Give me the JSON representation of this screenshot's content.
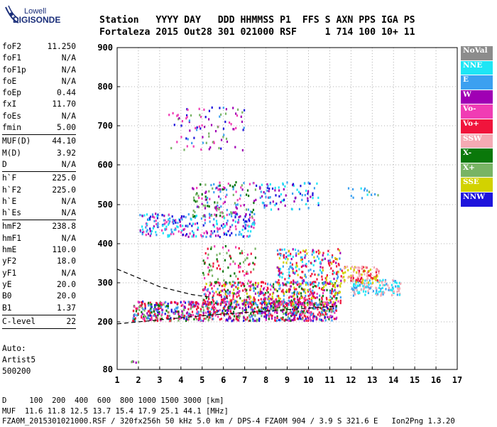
{
  "brand": {
    "top": "Lowell",
    "main": "DIGISONDE"
  },
  "header": {
    "labels": "Station   YYYY DAY   DDD HHMMSS P1  FFS S AXN PPS IGA PS",
    "values": "Fortaleza 2015 Out28 301 021000 RSF     1 714 100 10+ 11"
  },
  "params": [
    {
      "label": "foF2",
      "value": "11.250"
    },
    {
      "label": "foF1",
      "value": "N/A"
    },
    {
      "label": "foF1p",
      "value": "N/A"
    },
    {
      "label": "foE",
      "value": "N/A"
    },
    {
      "label": "foEp",
      "value": "0.44"
    },
    {
      "label": "fxI",
      "value": "11.70"
    },
    {
      "label": "foEs",
      "value": "N/A"
    },
    {
      "label": "fmin",
      "value": "5.00"
    },
    {
      "sep": true
    },
    {
      "label": "MUF(D)",
      "value": "44.10"
    },
    {
      "label": "M(D)",
      "value": "3.92"
    },
    {
      "label": "D",
      "value": "N/A"
    },
    {
      "sep": true
    },
    {
      "label": "h`F",
      "value": "225.0"
    },
    {
      "label": "h`F2",
      "value": "225.0"
    },
    {
      "label": "h`E",
      "value": "N/A"
    },
    {
      "label": "h`Es",
      "value": "N/A"
    },
    {
      "sep": true
    },
    {
      "label": "hmF2",
      "value": "238.8"
    },
    {
      "label": "hmF1",
      "value": "N/A"
    },
    {
      "label": "hmE",
      "value": "110.0"
    },
    {
      "label": "yF2",
      "value": "18.0"
    },
    {
      "label": "yF1",
      "value": "N/A"
    },
    {
      "label": "yE",
      "value": "20.0"
    },
    {
      "label": "B0",
      "value": "20.0"
    },
    {
      "label": "B1",
      "value": "1.37"
    },
    {
      "sep": true
    },
    {
      "label": "C-level",
      "value": "22"
    },
    {
      "sep": true
    }
  ],
  "auto": {
    "line1": "Auto:",
    "line2": "Artist5",
    "line3": "500200"
  },
  "legend": [
    {
      "label": "NoVal",
      "color": "#8c8c8c"
    },
    {
      "label": "NNE",
      "color": "#1ee6f5"
    },
    {
      "label": "E",
      "color": "#3ca0f0"
    },
    {
      "label": "W",
      "color": "#a000b4"
    },
    {
      "label": "Vo-",
      "color": "#f03cb4"
    },
    {
      "label": "Vo+",
      "color": "#f0143c"
    },
    {
      "label": "SSW",
      "color": "#f5aab4"
    },
    {
      "label": "X-",
      "color": "#0a780a"
    },
    {
      "label": "X+",
      "color": "#78b464"
    },
    {
      "label": "SSE",
      "color": "#d2d200"
    },
    {
      "label": "NNW",
      "color": "#1e14dc"
    }
  ],
  "chart_data": {
    "type": "scatter",
    "xlim": [
      1,
      17
    ],
    "ylim": [
      80,
      900
    ],
    "x_ticks": [
      "1",
      "2",
      "3",
      "4",
      "5",
      "6",
      "7",
      "8",
      "9",
      "10",
      "11",
      "12",
      "13",
      "14",
      "15",
      "16",
      "17"
    ],
    "y_ticks": [
      "80",
      "200",
      "300",
      "400",
      "500",
      "600",
      "700",
      "800",
      "900"
    ],
    "grid": true,
    "clusters": [
      {
        "x": [
          1.7,
          11.3
        ],
        "y": [
          205,
          255
        ],
        "density": 900,
        "colors": [
          "#f0143c",
          "#f0143c",
          "#0a780a",
          "#3ca0f0",
          "#a000b4",
          "#1e14dc",
          "#f03cb4",
          "#78b464"
        ]
      },
      {
        "x": [
          5,
          11.5
        ],
        "y": [
          245,
          305
        ],
        "density": 500,
        "colors": [
          "#f0143c",
          "#f0143c",
          "#f03cb4",
          "#a000b4",
          "#0a780a",
          "#d2d200",
          "#3ca0f0"
        ]
      },
      {
        "x": [
          8.5,
          11.5
        ],
        "y": [
          295,
          390
        ],
        "density": 220,
        "colors": [
          "#f0143c",
          "#f0143c",
          "#1ee6f5",
          "#3ca0f0",
          "#d2d200",
          "#a000b4"
        ]
      },
      {
        "x": [
          5,
          7.5
        ],
        "y": [
          300,
          400
        ],
        "density": 90,
        "colors": [
          "#f03cb4",
          "#0a780a",
          "#78b464",
          "#f0143c"
        ]
      },
      {
        "x": [
          12,
          14.3
        ],
        "y": [
          270,
          310
        ],
        "density": 140,
        "colors": [
          "#1ee6f5",
          "#3ca0f0",
          "#f5aab4"
        ]
      },
      {
        "x": [
          11.5,
          13.3
        ],
        "y": [
          300,
          345
        ],
        "density": 110,
        "colors": [
          "#d2d200",
          "#f0143c",
          "#f5aab4"
        ]
      },
      {
        "x": [
          2,
          7.5
        ],
        "y": [
          420,
          480
        ],
        "density": 260,
        "colors": [
          "#3ca0f0",
          "#1ee6f5",
          "#a000b4",
          "#1e14dc",
          "#f03cb4"
        ]
      },
      {
        "x": [
          4.5,
          7.5
        ],
        "y": [
          470,
          560
        ],
        "density": 140,
        "colors": [
          "#f03cb4",
          "#a000b4",
          "#78b464",
          "#0a780a",
          "#3ca0f0"
        ]
      },
      {
        "x": [
          7.5,
          10.5
        ],
        "y": [
          490,
          560
        ],
        "density": 90,
        "colors": [
          "#3ca0f0",
          "#1ee6f5",
          "#1e14dc",
          "#a000b4"
        ]
      },
      {
        "x": [
          11.8,
          13.6
        ],
        "y": [
          515,
          545
        ],
        "density": 14,
        "colors": [
          "#1ee6f5",
          "#3ca0f0",
          "#78b464"
        ]
      },
      {
        "x": [
          3.4,
          7
        ],
        "y": [
          640,
          750
        ],
        "density": 90,
        "colors": [
          "#3ca0f0",
          "#a000b4",
          "#1e14dc",
          "#f03cb4",
          "#78b464"
        ]
      },
      {
        "x": [
          1.6,
          2
        ],
        "y": [
          100,
          104
        ],
        "density": 6,
        "colors": [
          "#78b464",
          "#a000b4"
        ]
      }
    ],
    "curves": [
      {
        "name": "virtual-height",
        "x": [
          1,
          5.5,
          11.3
        ],
        "y": [
          195,
          218,
          240
        ]
      },
      {
        "name": "lower-trace",
        "x": [
          1,
          3,
          4.5,
          5.5
        ],
        "y": [
          335,
          290,
          270,
          262
        ]
      }
    ]
  },
  "bottom": {
    "line1": "D     100  200  400  600  800 1000 1500 3000 [km]",
    "line2": "MUF  11.6 11.8 12.5 13.7 15.4 17.9 25.1 44.1 [MHz]",
    "line3": "FZA0M_2015301021000.RSF / 320fx256h 50 kHz 5.0 km / DPS-4 FZA0M 904 / 3.9 S 321.6 E   Ion2Png 1.3.20"
  }
}
